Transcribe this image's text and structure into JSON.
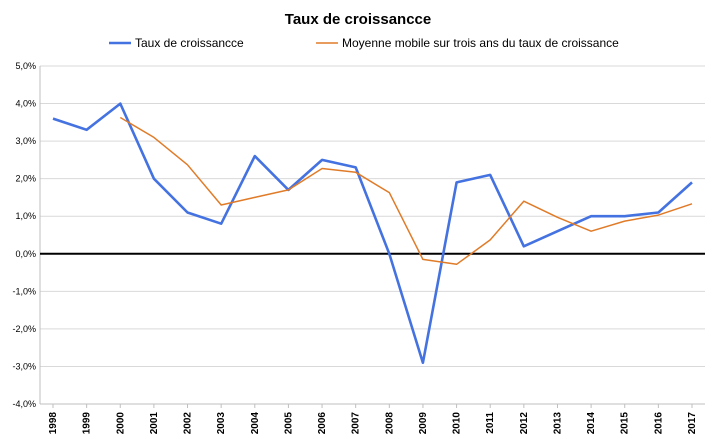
{
  "chart_data": {
    "type": "line",
    "title": "Taux de croissancce",
    "xlabel": "",
    "ylabel": "",
    "x": [
      "1998",
      "1999",
      "2000",
      "2001",
      "2002",
      "2003",
      "2004",
      "2005",
      "2006",
      "2007",
      "2008",
      "2009",
      "2010",
      "2011",
      "2012",
      "2013",
      "2014",
      "2015",
      "2016",
      "2017"
    ],
    "ylim": [
      -4.0,
      5.0
    ],
    "yticks": [
      5.0,
      4.0,
      3.0,
      2.0,
      1.0,
      0.0,
      -1.0,
      -2.0,
      -3.0,
      -4.0
    ],
    "ytick_labels": [
      "5,0%",
      "4,0%",
      "3,0%",
      "2,0%",
      "1,0%",
      "0,0%",
      "-1,0%",
      "-2,0%",
      "-3,0%",
      "-4,0%"
    ],
    "grid": true,
    "legend_position": "top",
    "series": [
      {
        "name": "Taux de croissancce",
        "color": "#4472e0",
        "values": [
          3.6,
          3.3,
          4.0,
          2.0,
          1.1,
          0.8,
          2.6,
          1.7,
          2.5,
          2.3,
          0.0,
          -2.9,
          1.9,
          2.1,
          0.2,
          0.6,
          1.0,
          1.0,
          1.1,
          1.9
        ]
      },
      {
        "name": "Moyenne mobile sur trois ans du taux de croissance",
        "color": "#e07b28",
        "values": [
          null,
          null,
          3.63,
          3.1,
          2.37,
          1.3,
          1.5,
          1.7,
          2.27,
          2.17,
          1.63,
          -0.15,
          -0.28,
          0.37,
          1.4,
          0.97,
          0.6,
          0.87,
          1.03,
          1.33
        ]
      }
    ]
  }
}
